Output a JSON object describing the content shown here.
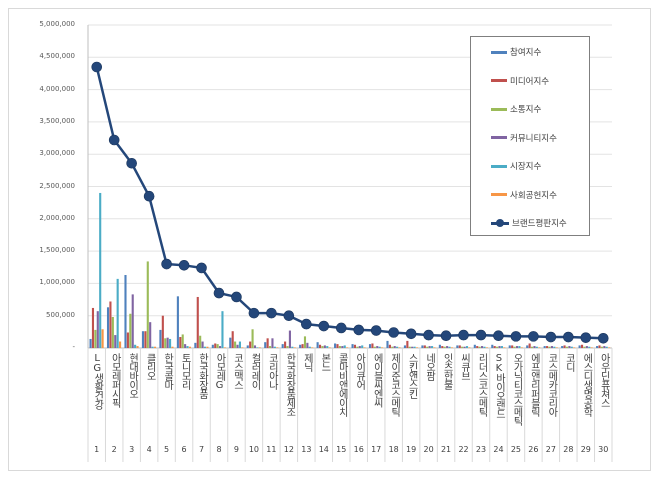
{
  "chart_data": {
    "type": "bar",
    "title": "",
    "xlabel": "",
    "ylabel": "",
    "ylim": [
      0,
      5000000
    ],
    "yticks": [
      "-",
      "500,000",
      "1,000,000",
      "1,500,000",
      "2,000,000",
      "2,500,000",
      "3,000,000",
      "3,500,000",
      "4,000,000",
      "4,500,000",
      "5,000,000"
    ],
    "grid": true,
    "legend_position": "top-right",
    "numbers": [
      "1",
      "2",
      "3",
      "4",
      "5",
      "6",
      "7",
      "8",
      "9",
      "10",
      "11",
      "12",
      "13",
      "14",
      "15",
      "16",
      "17",
      "18",
      "19",
      "20",
      "21",
      "22",
      "23",
      "24",
      "25",
      "26",
      "27",
      "28",
      "29",
      "30"
    ],
    "categories": [
      "LG생활건강",
      "아모레퍼시픽",
      "현대바이오",
      "클리오",
      "한국콜마",
      "토니모리",
      "한국화장품",
      "아모레G",
      "코스맥스",
      "컬러레이",
      "코리아나",
      "한국화장품제조",
      "제닉",
      "본느",
      "콜마비앤에이치",
      "아이큐어",
      "에이블씨엔씨",
      "제이준코스메틱",
      "스킨앤스킨",
      "네오팜",
      "잇츠한불",
      "씨큐브",
      "리더스코스메틱",
      "SK바이오랜드",
      "오가닉티코스메틱",
      "에프앤리퍼블릭",
      "코스메카코리아",
      "코디",
      "에스디생명공학",
      "아우딘퓨쳐스"
    ],
    "series": [
      {
        "name": "참여지수",
        "type": "bar",
        "color": "#4f81bd",
        "values": [
          140000,
          630000,
          1130000,
          260000,
          280000,
          800000,
          80000,
          50000,
          160000,
          40000,
          90000,
          60000,
          50000,
          90000,
          70000,
          60000,
          60000,
          110000,
          40000,
          40000,
          50000,
          40000,
          50000,
          50000,
          40000,
          40000,
          30000,
          30000,
          40000,
          30000
        ]
      },
      {
        "name": "미디어지수",
        "type": "bar",
        "color": "#c0504d",
        "values": [
          620000,
          720000,
          240000,
          260000,
          500000,
          170000,
          790000,
          70000,
          260000,
          100000,
          150000,
          100000,
          60000,
          50000,
          60000,
          50000,
          70000,
          50000,
          110000,
          40000,
          30000,
          40000,
          30000,
          30000,
          40000,
          70000,
          30000,
          40000,
          50000,
          40000
        ]
      },
      {
        "name": "소통지수",
        "type": "bar",
        "color": "#9bbb59",
        "values": [
          280000,
          480000,
          530000,
          1340000,
          150000,
          210000,
          190000,
          60000,
          100000,
          290000,
          30000,
          30000,
          180000,
          30000,
          30000,
          20000,
          20000,
          20000,
          20000,
          20000,
          20000,
          20000,
          20000,
          20000,
          20000,
          20000,
          20000,
          20000,
          20000,
          20000
        ]
      },
      {
        "name": "커뮤니티지수",
        "type": "bar",
        "color": "#8064a2",
        "values": [
          570000,
          200000,
          830000,
          400000,
          160000,
          60000,
          100000,
          30000,
          50000,
          40000,
          150000,
          270000,
          80000,
          40000,
          30000,
          30000,
          30000,
          30000,
          20000,
          30000,
          30000,
          20000,
          30000,
          30000,
          30000,
          30000,
          30000,
          30000,
          30000,
          30000
        ]
      },
      {
        "name": "시장지수",
        "type": "bar",
        "color": "#4bacc6",
        "values": [
          2400000,
          1070000,
          50000,
          20000,
          140000,
          30000,
          20000,
          570000,
          100000,
          10000,
          20000,
          20000,
          20000,
          30000,
          40000,
          40000,
          20000,
          20000,
          20000,
          30000,
          20000,
          30000,
          20000,
          30000,
          30000,
          20000,
          20000,
          20000,
          20000,
          20000
        ]
      },
      {
        "name": "사회공헌지수",
        "type": "bar",
        "color": "#f79646",
        "values": [
          290000,
          100000,
          30000,
          20000,
          20000,
          20000,
          20000,
          10000,
          10000,
          10000,
          10000,
          10000,
          10000,
          10000,
          10000,
          10000,
          10000,
          10000,
          10000,
          10000,
          10000,
          10000,
          10000,
          10000,
          10000,
          10000,
          10000,
          10000,
          10000,
          10000
        ]
      },
      {
        "name": "브랜드평판지수",
        "type": "line",
        "color": "#24477a",
        "values": [
          4350000,
          3220000,
          2860000,
          2350000,
          1300000,
          1280000,
          1240000,
          850000,
          790000,
          540000,
          540000,
          500000,
          370000,
          340000,
          310000,
          280000,
          270000,
          240000,
          220000,
          200000,
          190000,
          200000,
          200000,
          190000,
          180000,
          180000,
          170000,
          170000,
          160000,
          150000
        ]
      }
    ]
  }
}
